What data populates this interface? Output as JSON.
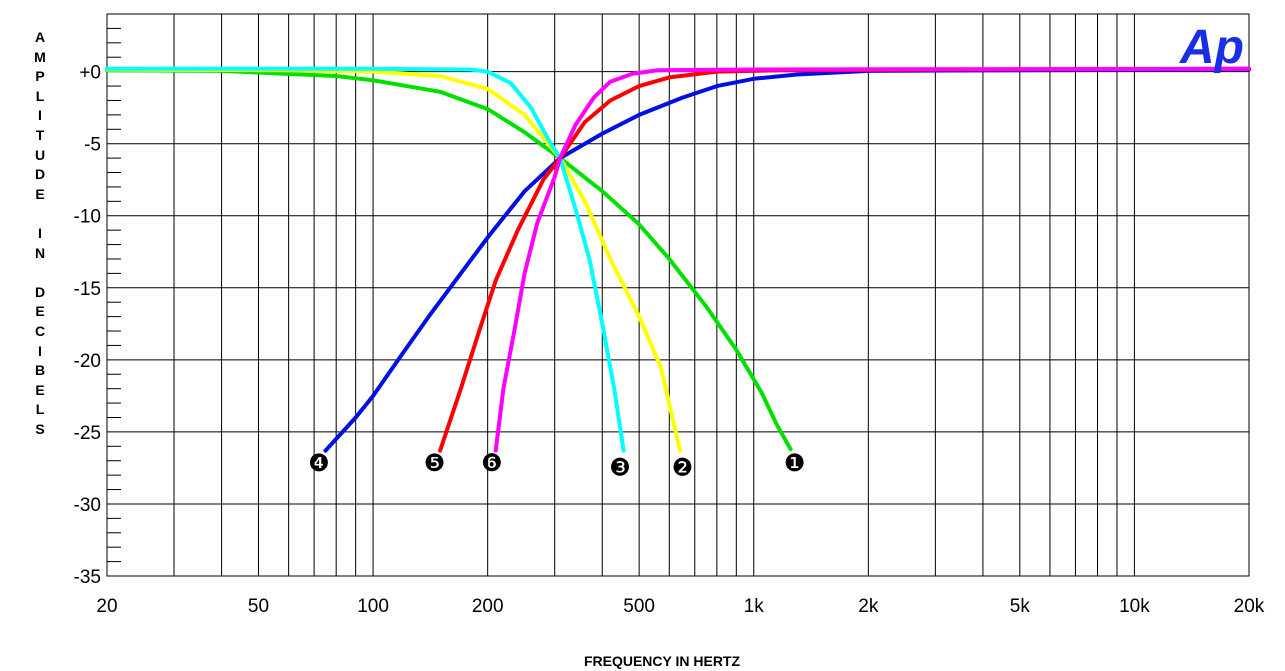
{
  "chart_data": {
    "type": "line",
    "xlabel": "FREQUENCY IN HERTZ",
    "ylabel": "AMPLITUDE IN DECIBELS",
    "logo": "Ap",
    "x_scale": "log",
    "xlim": [
      20,
      20000
    ],
    "ylim": [
      -35,
      4
    ],
    "grid": true,
    "x_ticks": [
      20,
      50,
      100,
      200,
      500,
      1000,
      2000,
      5000,
      10000,
      20000
    ],
    "x_tick_labels": [
      "20",
      "50",
      "100",
      "200",
      "500",
      "1k",
      "2k",
      "5k",
      "10k",
      "20k"
    ],
    "y_ticks": [
      0,
      -5,
      -10,
      -15,
      -20,
      -25,
      -30,
      -35
    ],
    "y_tick_labels": [
      "+0",
      "-5",
      "-10",
      "-15",
      "-20",
      "-25",
      "-30",
      "-35"
    ],
    "series": [
      {
        "marker": "❶",
        "color": "#00e000",
        "label_at": [
          1280,
          -27.1
        ],
        "points": [
          [
            20,
            0.1
          ],
          [
            40,
            0.05
          ],
          [
            80,
            -0.3
          ],
          [
            100,
            -0.6
          ],
          [
            150,
            -1.4
          ],
          [
            200,
            -2.6
          ],
          [
            250,
            -4.2
          ],
          [
            310,
            -6
          ],
          [
            400,
            -8.3
          ],
          [
            500,
            -10.6
          ],
          [
            600,
            -13
          ],
          [
            750,
            -16.3
          ],
          [
            900,
            -19.3
          ],
          [
            1050,
            -22.3
          ],
          [
            1150,
            -24.5
          ],
          [
            1250,
            -26.2
          ]
        ]
      },
      {
        "marker": "❷",
        "color": "#ffff00",
        "label_at": [
          650,
          -27.4
        ],
        "points": [
          [
            20,
            0.15
          ],
          [
            60,
            0.1
          ],
          [
            100,
            0
          ],
          [
            150,
            -0.3
          ],
          [
            200,
            -1.2
          ],
          [
            250,
            -3
          ],
          [
            310,
            -6
          ],
          [
            360,
            -9
          ],
          [
            420,
            -13
          ],
          [
            500,
            -17
          ],
          [
            570,
            -20.5
          ],
          [
            640,
            -26.3
          ]
        ]
      },
      {
        "marker": "❸",
        "color": "#00ffff",
        "label_at": [
          445,
          -27.4
        ],
        "points": [
          [
            20,
            0.2
          ],
          [
            100,
            0.2
          ],
          [
            180,
            0.15
          ],
          [
            200,
            0
          ],
          [
            230,
            -0.8
          ],
          [
            260,
            -2.5
          ],
          [
            290,
            -4.8
          ],
          [
            310,
            -6
          ],
          [
            340,
            -9.5
          ],
          [
            370,
            -13
          ],
          [
            400,
            -17.5
          ],
          [
            430,
            -22
          ],
          [
            455,
            -26.3
          ]
        ]
      },
      {
        "marker": "❹",
        "color": "#0010e0",
        "label_at": [
          72,
          -27.1
        ],
        "points": [
          [
            75,
            -26.3
          ],
          [
            90,
            -24
          ],
          [
            100,
            -22.5
          ],
          [
            120,
            -19.5
          ],
          [
            140,
            -17
          ],
          [
            170,
            -14
          ],
          [
            200,
            -11.5
          ],
          [
            250,
            -8.3
          ],
          [
            310,
            -6
          ],
          [
            400,
            -4.3
          ],
          [
            500,
            -3
          ],
          [
            650,
            -1.8
          ],
          [
            800,
            -1
          ],
          [
            1000,
            -0.5
          ],
          [
            1300,
            -0.2
          ],
          [
            2000,
            0.05
          ],
          [
            5000,
            0.1
          ],
          [
            20000,
            0.15
          ]
        ]
      },
      {
        "marker": "❺",
        "color": "#ff0000",
        "label_at": [
          145,
          -27.1
        ],
        "points": [
          [
            150,
            -26.3
          ],
          [
            170,
            -22
          ],
          [
            190,
            -18
          ],
          [
            210,
            -14.5
          ],
          [
            240,
            -11
          ],
          [
            280,
            -7.5
          ],
          [
            310,
            -6
          ],
          [
            360,
            -3.5
          ],
          [
            420,
            -2
          ],
          [
            500,
            -1
          ],
          [
            600,
            -0.4
          ],
          [
            800,
            0
          ],
          [
            1200,
            0.1
          ],
          [
            20000,
            0.2
          ]
        ]
      },
      {
        "marker": "❻",
        "color": "#ff00ff",
        "label_at": [
          205,
          -27.1
        ],
        "points": [
          [
            210,
            -26.3
          ],
          [
            220,
            -22
          ],
          [
            235,
            -18
          ],
          [
            250,
            -14
          ],
          [
            270,
            -10.5
          ],
          [
            300,
            -7.3
          ],
          [
            310,
            -6
          ],
          [
            340,
            -3.7
          ],
          [
            380,
            -1.8
          ],
          [
            420,
            -0.7
          ],
          [
            480,
            -0.15
          ],
          [
            560,
            0.1
          ],
          [
            1000,
            0.15
          ],
          [
            20000,
            0.2
          ]
        ]
      }
    ]
  }
}
